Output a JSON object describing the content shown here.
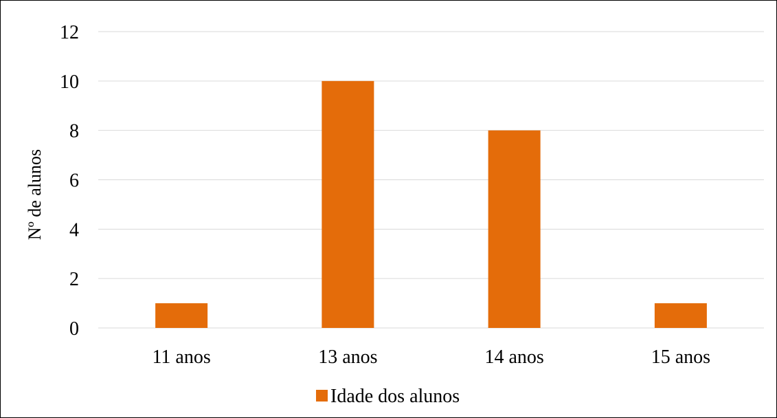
{
  "chart_data": {
    "type": "bar",
    "title": "",
    "xlabel": "",
    "ylabel": "Nº de alunos",
    "categories": [
      "11 anos",
      "13 anos",
      "14 anos",
      "15 anos"
    ],
    "series": [
      {
        "name": "Idade dos alunos",
        "values": [
          1,
          10,
          8,
          1
        ],
        "color": "#E46C0A"
      }
    ],
    "ylim": [
      0,
      12
    ],
    "yticks": [
      0,
      2,
      4,
      6,
      8,
      10,
      12
    ],
    "grid": true,
    "gridline_color": "#D9D9D9",
    "legend_position": "bottom"
  }
}
